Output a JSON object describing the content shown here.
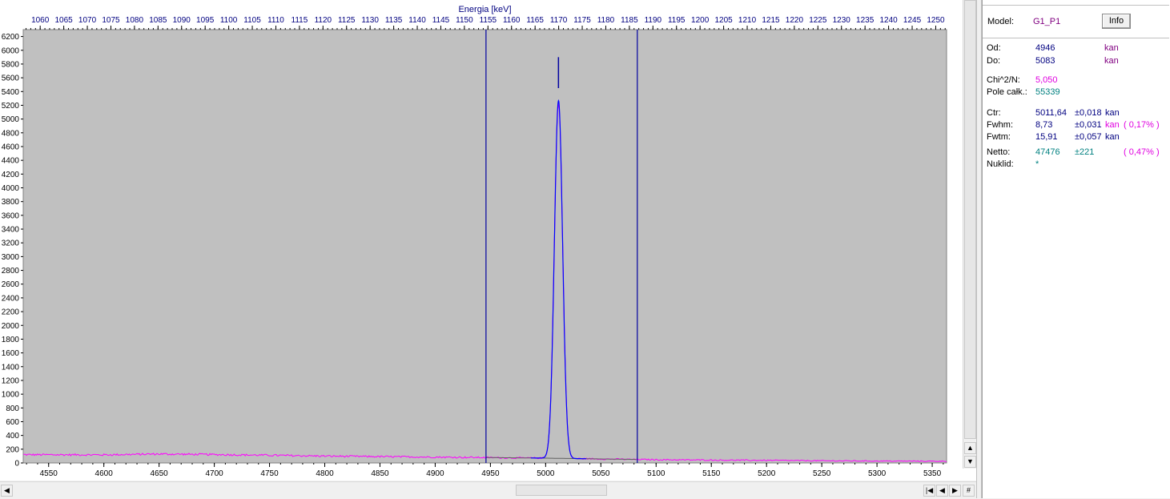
{
  "chart_data": {
    "type": "line",
    "top_axis_title": "Energia [keV]",
    "top_ticks": [
      1060,
      1065,
      1070,
      1075,
      1080,
      1085,
      1090,
      1095,
      1100,
      1105,
      1110,
      1115,
      1120,
      1125,
      1130,
      1135,
      1140,
      1145,
      1150,
      1155,
      1160,
      1165,
      1170,
      1175,
      1180,
      1185,
      1190,
      1195,
      1200,
      1205,
      1210,
      1215,
      1220,
      1225,
      1230,
      1235,
      1240,
      1245,
      1250
    ],
    "x_ticks": [
      4550,
      4600,
      4650,
      4700,
      4750,
      4800,
      4850,
      4900,
      4950,
      5000,
      5050,
      5100,
      5150,
      5200,
      5250,
      5300,
      5350
    ],
    "y_ticks": [
      0,
      200,
      400,
      600,
      800,
      1000,
      1200,
      1400,
      1600,
      1800,
      2000,
      2200,
      2400,
      2600,
      2800,
      3000,
      3200,
      3400,
      3600,
      3800,
      4000,
      4200,
      4400,
      4600,
      4800,
      5000,
      5200,
      5400,
      5600,
      5800,
      6000,
      6200
    ],
    "xlim": [
      4527,
      5363
    ],
    "ylim": [
      0,
      6300
    ],
    "top_xlim": [
      1056.4,
      1252.3
    ],
    "region_markers": [
      4946,
      5083
    ],
    "peak_marker": {
      "x": 5011.6,
      "y_from": 5450,
      "y_to": 5900
    },
    "peak": {
      "center": 5011.64,
      "fwhm": 8.73,
      "height": 5200
    },
    "background": {
      "points": [
        [
          4527,
          120
        ],
        [
          4600,
          118
        ],
        [
          4650,
          130
        ],
        [
          4700,
          122
        ],
        [
          4750,
          112
        ],
        [
          4800,
          100
        ],
        [
          4850,
          92
        ],
        [
          4900,
          85
        ],
        [
          4950,
          78
        ],
        [
          5000,
          70
        ],
        [
          5050,
          58
        ],
        [
          5100,
          48
        ],
        [
          5150,
          42
        ],
        [
          5200,
          38
        ],
        [
          5250,
          32
        ],
        [
          5300,
          28
        ],
        [
          5363,
          25
        ]
      ]
    },
    "series": [
      {
        "name": "",
        "color": "#ff00ff",
        "kind": "spectrum"
      },
      {
        "name": "",
        "color": "#0000ff",
        "kind": "fit"
      },
      {
        "name": "",
        "color": "#606060",
        "kind": "background"
      }
    ],
    "colors": {
      "plot_bg": "#c0c0c0",
      "marker": "#0000a0",
      "top_axis": "#000080"
    }
  },
  "panel": {
    "model_label": "Model:",
    "model_value": "G1_P1",
    "info_label": "Info",
    "od_label": "Od:",
    "od_value": "4946",
    "od_unit": "kan",
    "do_label": "Do:",
    "do_value": "5083",
    "do_unit": "kan",
    "chi_label": "Chi^2/N:",
    "chi_value": "5,050",
    "pole_label": "Pole całk.:",
    "pole_value": "55339",
    "ctr_label": "Ctr:",
    "ctr_value": "5011,64",
    "ctr_err": "±0,018",
    "ctr_unit": "kan",
    "fwhm_label": "Fwhm:",
    "fwhm_value": "8,73",
    "fwhm_err": "±0,031",
    "fwhm_unit": "kan",
    "fwhm_pct": "( 0,17% )",
    "fwtm_label": "Fwtm:",
    "fwtm_value": "15,91",
    "fwtm_err": "±0,057",
    "fwtm_unit": "kan",
    "netto_label": "Netto:",
    "netto_value": "47476",
    "netto_err": "±221",
    "netto_pct": "( 0,47% )",
    "nuklid_label": "Nuklid:",
    "nuklid_value": "*",
    "colors": {
      "model": "#800080",
      "dark": "#000080",
      "magenta": "#e000e0",
      "teal": "#008080"
    }
  }
}
